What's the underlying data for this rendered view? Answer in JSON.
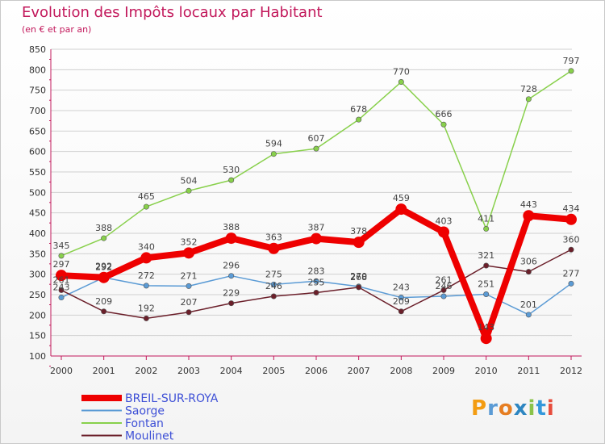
{
  "chart_data": {
    "type": "line",
    "title": "Evolution des Impôts locaux par Habitant",
    "subtitle": "(en € et par an)",
    "xlabel": "",
    "ylabel": "",
    "ylim": [
      100,
      850
    ],
    "yticks": [
      "100",
      "150",
      "200",
      "250",
      "300",
      "350",
      "400",
      "450",
      "500",
      "550",
      "600",
      "650",
      "700",
      "750",
      "800",
      "850"
    ],
    "categories": [
      "2000",
      "2001",
      "2002",
      "2003",
      "2004",
      "2005",
      "2006",
      "2007",
      "2008",
      "2009",
      "2010",
      "2011",
      "2012"
    ],
    "series": [
      {
        "name": "BREIL-SUR-ROYA",
        "color": "#ee0000",
        "labels": [
          "297",
          "292",
          "340",
          "352",
          "388",
          "363",
          "387",
          "378",
          "459",
          "403",
          "143",
          "443",
          "434"
        ],
        "values": [
          297,
          292,
          340,
          352,
          388,
          363,
          387,
          378,
          459,
          403,
          143,
          443,
          434
        ]
      },
      {
        "name": "Saorge",
        "color": "#5b9bd5",
        "labels": [
          "243",
          "292",
          "272",
          "271",
          "296",
          "275",
          "283",
          "270",
          "243",
          "246",
          "251",
          "201",
          "277"
        ],
        "values": [
          243,
          292,
          272,
          271,
          296,
          275,
          283,
          270,
          243,
          246,
          251,
          201,
          277
        ]
      },
      {
        "name": "Fontan",
        "color": "#88d04b",
        "labels": [
          "345",
          "388",
          "465",
          "504",
          "530",
          "594",
          "607",
          "678",
          "770",
          "666",
          "411",
          "728",
          "797"
        ],
        "values": [
          345,
          388,
          465,
          504,
          530,
          594,
          607,
          678,
          770,
          666,
          411,
          728,
          797
        ]
      },
      {
        "name": "Moulinet",
        "color": "#6b1f2a",
        "labels": [
          "261",
          "209",
          "192",
          "207",
          "229",
          "246",
          "255",
          "268",
          "209",
          "261",
          "321",
          "306",
          "360"
        ],
        "values": [
          261,
          209,
          192,
          207,
          229,
          246,
          255,
          268,
          209,
          261,
          321,
          306,
          360
        ]
      }
    ],
    "legend_position": "bottom-left"
  },
  "logo": {
    "text": "Proxiti",
    "colors": [
      "#f39c12",
      "#5b9bd5",
      "#e67e22",
      "#2e86c1",
      "#8bc34a",
      "#3498db",
      "#e74c3c"
    ]
  }
}
